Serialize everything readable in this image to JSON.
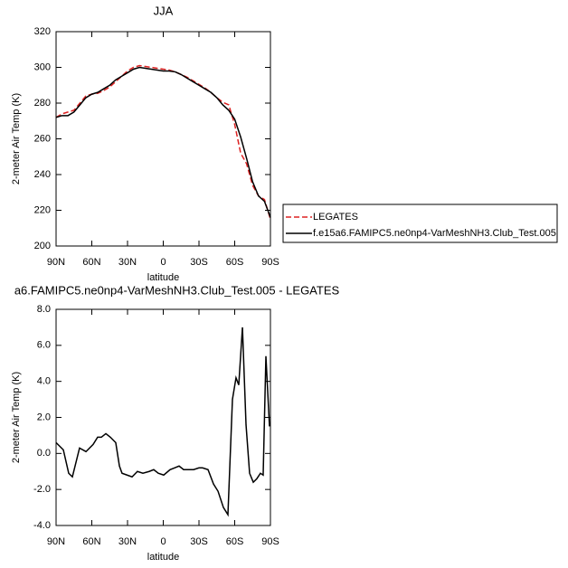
{
  "chart_data": [
    {
      "type": "line",
      "title": "JJA",
      "xlabel": "latitude",
      "ylabel": "2-meter Air Temp (K)",
      "x": [
        90,
        85,
        80,
        75,
        70,
        65,
        60,
        55,
        50,
        45,
        40,
        35,
        30,
        25,
        20,
        15,
        10,
        5,
        0,
        -5,
        -10,
        -15,
        -20,
        -25,
        -30,
        -35,
        -40,
        -45,
        -50,
        -55,
        -60,
        -65,
        -70,
        -75,
        -80,
        -85,
        -90
      ],
      "series": [
        {
          "name": "LEGATES",
          "color": "#dd2222",
          "dash": true,
          "values": [
            272,
            274,
            275,
            276,
            280,
            284,
            285,
            285.5,
            287,
            289,
            292,
            295,
            298,
            300,
            301,
            300.5,
            300,
            299.5,
            299,
            298.5,
            297.5,
            296,
            294.5,
            292.5,
            290.5,
            288.5,
            286,
            283,
            280.5,
            279,
            268,
            252,
            246,
            234,
            228,
            226,
            215
          ]
        },
        {
          "name": "f.e15a6.FAMIPC5.ne0np4-VarMeshNH3.Club_Test.005",
          "color": "#000000",
          "dash": false,
          "values": [
            272,
            273,
            273,
            275,
            279,
            283,
            285,
            286,
            288,
            290,
            293,
            295,
            297,
            299,
            300,
            299.5,
            299,
            298.5,
            298,
            298,
            297.5,
            296,
            294,
            292,
            290,
            288,
            286,
            283,
            279,
            276,
            271,
            261,
            249,
            236,
            228,
            225,
            216
          ]
        }
      ],
      "xlim": [
        90,
        -90
      ],
      "xticks": [
        {
          "value": 90,
          "label": "90N"
        },
        {
          "value": 60,
          "label": "60N"
        },
        {
          "value": 30,
          "label": "30N"
        },
        0,
        {
          "value": -30,
          "label": "30S"
        },
        {
          "value": -60,
          "label": "60S"
        },
        {
          "value": -90,
          "label": "90S"
        }
      ],
      "ylim": [
        200,
        320
      ],
      "yticks": [
        200,
        220,
        240,
        260,
        280,
        300,
        320
      ],
      "legend": "right"
    },
    {
      "type": "line",
      "title": "a6.FAMIPC5.ne0np4-VarMeshNH3.Club_Test.005 - LEGATES",
      "xlabel": "latitude",
      "ylabel": "2-meter Air Temp (K)",
      "x": [
        90,
        83.9,
        79.4,
        76.3,
        70.3,
        64.9,
        58.9,
        55.1,
        52.0,
        48.2,
        44.4,
        39.9,
        36.8,
        34.6,
        26.2,
        21.7,
        17.1,
        11.8,
        8.0,
        4.2,
        -0.4,
        -5.7,
        -9.5,
        -13.3,
        -17.1,
        -22.4,
        -25.5,
        -30.0,
        -33.0,
        -37.6,
        -42.2,
        -46.0,
        -50.5,
        -54.3,
        -58.1,
        -61.1,
        -63.4,
        -66.5,
        -69.5,
        -72.5,
        -75.6,
        -78.6,
        -81.6,
        -83.9,
        -86.2,
        -89.2
      ],
      "color": "#000000",
      "values": [
        0.6,
        0.2,
        -1.1,
        -1.3,
        0.3,
        0.1,
        0.5,
        0.9,
        0.9,
        1.1,
        0.9,
        0.6,
        -0.7,
        -1.1,
        -1.3,
        -1.0,
        -1.1,
        -1.0,
        -0.9,
        -1.1,
        -1.2,
        -0.9,
        -0.8,
        -0.7,
        -0.9,
        -0.9,
        -0.9,
        -0.8,
        -0.8,
        -0.9,
        -1.7,
        -2.1,
        -3.0,
        -3.4,
        3.0,
        4.2,
        3.8,
        7.0,
        1.6,
        -1.1,
        -1.6,
        -1.4,
        -1.1,
        -1.2,
        5.4,
        1.5
      ],
      "xlim": [
        90,
        -90
      ],
      "xticks": [
        {
          "value": 90,
          "label": "90N"
        },
        {
          "value": 60,
          "label": "60N"
        },
        {
          "value": 30,
          "label": "30N"
        },
        0,
        {
          "value": -30,
          "label": "30S"
        },
        {
          "value": -60,
          "label": "60S"
        },
        {
          "value": -90,
          "label": "90S"
        }
      ],
      "ylim": [
        -4,
        8
      ],
      "yticks": [
        {
          "value": -4,
          "label": "-4.0"
        },
        {
          "value": -2,
          "label": "-2.0"
        },
        {
          "value": 0,
          "label": "0.0"
        },
        {
          "value": 2,
          "label": "2.0"
        },
        {
          "value": 4,
          "label": "4.0"
        },
        {
          "value": 6,
          "label": "6.0"
        },
        {
          "value": 8,
          "label": "8.0"
        }
      ]
    }
  ]
}
